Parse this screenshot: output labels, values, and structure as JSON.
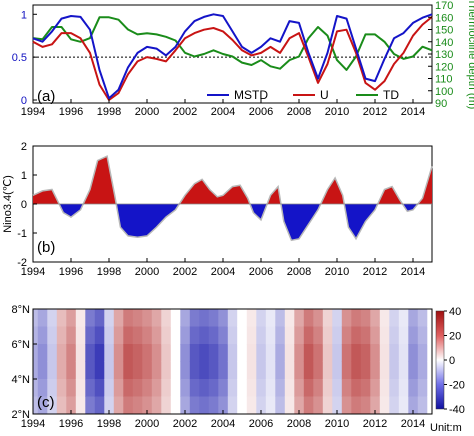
{
  "chart_data": [
    {
      "panel": "a",
      "type": "line",
      "label": "(a)",
      "xlim": [
        1994,
        2015
      ],
      "x_ticks": [
        "1994",
        "1996",
        "1998",
        "2000",
        "2002",
        "2004",
        "2006",
        "2008",
        "2010",
        "2012",
        "2014"
      ],
      "ylim": [
        0,
        1.05
      ],
      "y_ticks": [
        "0",
        "0.5",
        "1"
      ],
      "y2label": "Thermocline depth (m)",
      "y2lim": [
        90,
        170
      ],
      "y2_ticks": [
        "90",
        "100",
        "110",
        "120",
        "130",
        "140",
        "150",
        "160",
        "170"
      ],
      "reference_line": 0.5,
      "legend": [
        "MSTD",
        "U",
        "TD"
      ],
      "legend_position": "bottom-right",
      "series": [
        {
          "name": "MSTD",
          "color": "#1414c8",
          "axis": "left",
          "x": [
            1994,
            1994.5,
            1995,
            1995.5,
            1996,
            1996.5,
            1997,
            1997.5,
            1998,
            1998.5,
            1999,
            1999.5,
            2000,
            2000.5,
            2001,
            2001.5,
            2002,
            2002.5,
            2003,
            2003.5,
            2004,
            2004.5,
            2005,
            2005.5,
            2006,
            2006.5,
            2007,
            2007.5,
            2008,
            2008.5,
            2009,
            2009.5,
            2010,
            2010.5,
            2011,
            2011.5,
            2012,
            2012.5,
            2013,
            2013.5,
            2014,
            2014.5,
            2015
          ],
          "y": [
            0.72,
            0.68,
            0.8,
            0.95,
            0.98,
            0.97,
            0.82,
            0.35,
            0.02,
            0.12,
            0.38,
            0.55,
            0.62,
            0.6,
            0.52,
            0.62,
            0.8,
            0.92,
            0.97,
            1.0,
            0.98,
            0.8,
            0.62,
            0.55,
            0.62,
            0.72,
            0.68,
            0.92,
            0.9,
            0.55,
            0.25,
            0.55,
            0.98,
            0.95,
            0.6,
            0.25,
            0.22,
            0.48,
            0.72,
            0.78,
            0.9,
            0.96,
            1.0
          ]
        },
        {
          "name": "U",
          "color": "#c81414",
          "axis": "left",
          "x": [
            1994,
            1994.5,
            1995,
            1995.5,
            1996,
            1996.5,
            1997,
            1997.5,
            1998,
            1998.5,
            1999,
            1999.5,
            2000,
            2000.5,
            2001,
            2001.5,
            2002,
            2002.5,
            2003,
            2003.5,
            2004,
            2004.5,
            2005,
            2005.5,
            2006,
            2006.5,
            2007,
            2007.5,
            2008,
            2008.5,
            2009,
            2009.5,
            2010,
            2010.5,
            2011,
            2011.5,
            2012,
            2012.5,
            2013,
            2013.5,
            2014,
            2014.5,
            2015
          ],
          "y": [
            0.68,
            0.62,
            0.65,
            0.78,
            0.78,
            0.72,
            0.55,
            0.18,
            0.0,
            0.08,
            0.3,
            0.45,
            0.5,
            0.48,
            0.45,
            0.58,
            0.72,
            0.78,
            0.82,
            0.84,
            0.8,
            0.7,
            0.58,
            0.52,
            0.55,
            0.62,
            0.55,
            0.72,
            0.78,
            0.5,
            0.2,
            0.42,
            0.8,
            0.82,
            0.55,
            0.2,
            0.12,
            0.22,
            0.42,
            0.55,
            0.75,
            0.88,
            0.97
          ]
        },
        {
          "name": "TD",
          "color": "#1a8c1a",
          "axis": "right",
          "x": [
            1994,
            1994.5,
            1995,
            1995.5,
            1996,
            1996.5,
            1997,
            1997.5,
            1998,
            1998.5,
            1999,
            1999.5,
            2000,
            2000.5,
            2001,
            2001.5,
            2002,
            2002.5,
            2003,
            2003.5,
            2004,
            2004.5,
            2005,
            2005.5,
            2006,
            2006.5,
            2007,
            2007.5,
            2008,
            2008.5,
            2009,
            2009.5,
            2010,
            2010.5,
            2011,
            2011.5,
            2012,
            2012.5,
            2013,
            2013.5,
            2014,
            2014.5,
            2015
          ],
          "y": [
            143,
            142,
            152,
            152,
            142,
            140,
            143,
            160,
            160,
            158,
            150,
            146,
            147,
            146,
            144,
            141,
            131,
            128,
            130,
            133,
            130,
            128,
            123,
            121,
            125,
            120,
            118,
            125,
            128,
            143,
            152,
            145,
            125,
            117,
            128,
            146,
            146,
            140,
            130,
            126,
            128,
            136,
            133
          ]
        }
      ]
    },
    {
      "panel": "b",
      "type": "area",
      "label": "(b)",
      "ylabel": "Nino3.4(℃)",
      "xlim": [
        1994,
        2015
      ],
      "x_ticks": [
        "1994",
        "1996",
        "1998",
        "2000",
        "2002",
        "2004",
        "2006",
        "2008",
        "2010",
        "2012",
        "2014"
      ],
      "ylim": [
        -2,
        2
      ],
      "y_ticks": [
        "-2",
        "-1",
        "0",
        "1",
        "2"
      ],
      "positive_color": "#c81414",
      "negative_color": "#1414c8",
      "series": [
        {
          "name": "Nino3.4",
          "x": [
            1994,
            1994.5,
            1995,
            1995.3,
            1995.6,
            1996,
            1996.5,
            1997,
            1997.4,
            1997.9,
            1998.3,
            1998.6,
            1999,
            1999.5,
            2000,
            2000.5,
            2001,
            2001.5,
            2002,
            2002.5,
            2002.9,
            2003.3,
            2003.7,
            2004,
            2004.5,
            2004.9,
            2005.3,
            2005.6,
            2006,
            2006.5,
            2006.9,
            2007.2,
            2007.6,
            2008,
            2008.5,
            2009,
            2009.5,
            2009.9,
            2010.3,
            2010.6,
            2011,
            2011.5,
            2012,
            2012.5,
            2012.9,
            2013.3,
            2013.7,
            2014,
            2014.5,
            2015
          ],
          "y": [
            0.3,
            0.45,
            0.5,
            0.1,
            -0.3,
            -0.45,
            -0.2,
            0.5,
            1.5,
            1.65,
            0.3,
            -0.8,
            -1.1,
            -1.15,
            -1.1,
            -0.8,
            -0.45,
            -0.2,
            0.3,
            0.7,
            0.85,
            0.5,
            0.25,
            0.3,
            0.6,
            0.65,
            0.2,
            -0.3,
            -0.55,
            0.3,
            0.6,
            -0.6,
            -1.25,
            -1.2,
            -0.7,
            -0.2,
            0.5,
            0.9,
            0.3,
            -0.8,
            -1.2,
            -0.6,
            -0.2,
            0.5,
            0.6,
            0.15,
            -0.25,
            -0.2,
            0.2,
            1.3
          ]
        }
      ]
    },
    {
      "panel": "c",
      "type": "heatmap",
      "label": "(c)",
      "xlim": [
        1994,
        2015
      ],
      "x_ticks": [
        "1994",
        "1996",
        "1998",
        "2000",
        "2002",
        "2004",
        "2006",
        "2008",
        "2010",
        "2012",
        "2014"
      ],
      "y_ticks": [
        "2°N",
        "4°N",
        "6°N",
        "8°N"
      ],
      "ylim": [
        2,
        8
      ],
      "colorbar_ticks": [
        "40",
        "20",
        "0",
        "-20",
        "-40"
      ],
      "colorbar_range": [
        -40,
        40
      ],
      "colorbar_label": "Unit:m",
      "years": [
        1994,
        1994.5,
        1995,
        1995.5,
        1996,
        1996.5,
        1997,
        1997.5,
        1998,
        1998.5,
        1999,
        1999.5,
        2000,
        2000.5,
        2001,
        2001.5,
        2002,
        2002.5,
        2003,
        2003.5,
        2004,
        2004.5,
        2005,
        2005.5,
        2006,
        2006.5,
        2007,
        2007.5,
        2008,
        2008.5,
        2009,
        2009.5,
        2010,
        2010.5,
        2011,
        2011.5,
        2012,
        2012.5,
        2013,
        2013.5,
        2014,
        2014.5,
        2015
      ],
      "values": [
        -15,
        -20,
        -10,
        15,
        22,
        5,
        -30,
        -35,
        -10,
        20,
        30,
        28,
        25,
        20,
        10,
        0,
        -20,
        -30,
        -32,
        -30,
        -25,
        -10,
        0,
        5,
        -10,
        -5,
        -15,
        5,
        20,
        30,
        25,
        10,
        -10,
        25,
        30,
        28,
        20,
        5,
        -10,
        -5,
        -20,
        -15,
        0
      ]
    }
  ]
}
